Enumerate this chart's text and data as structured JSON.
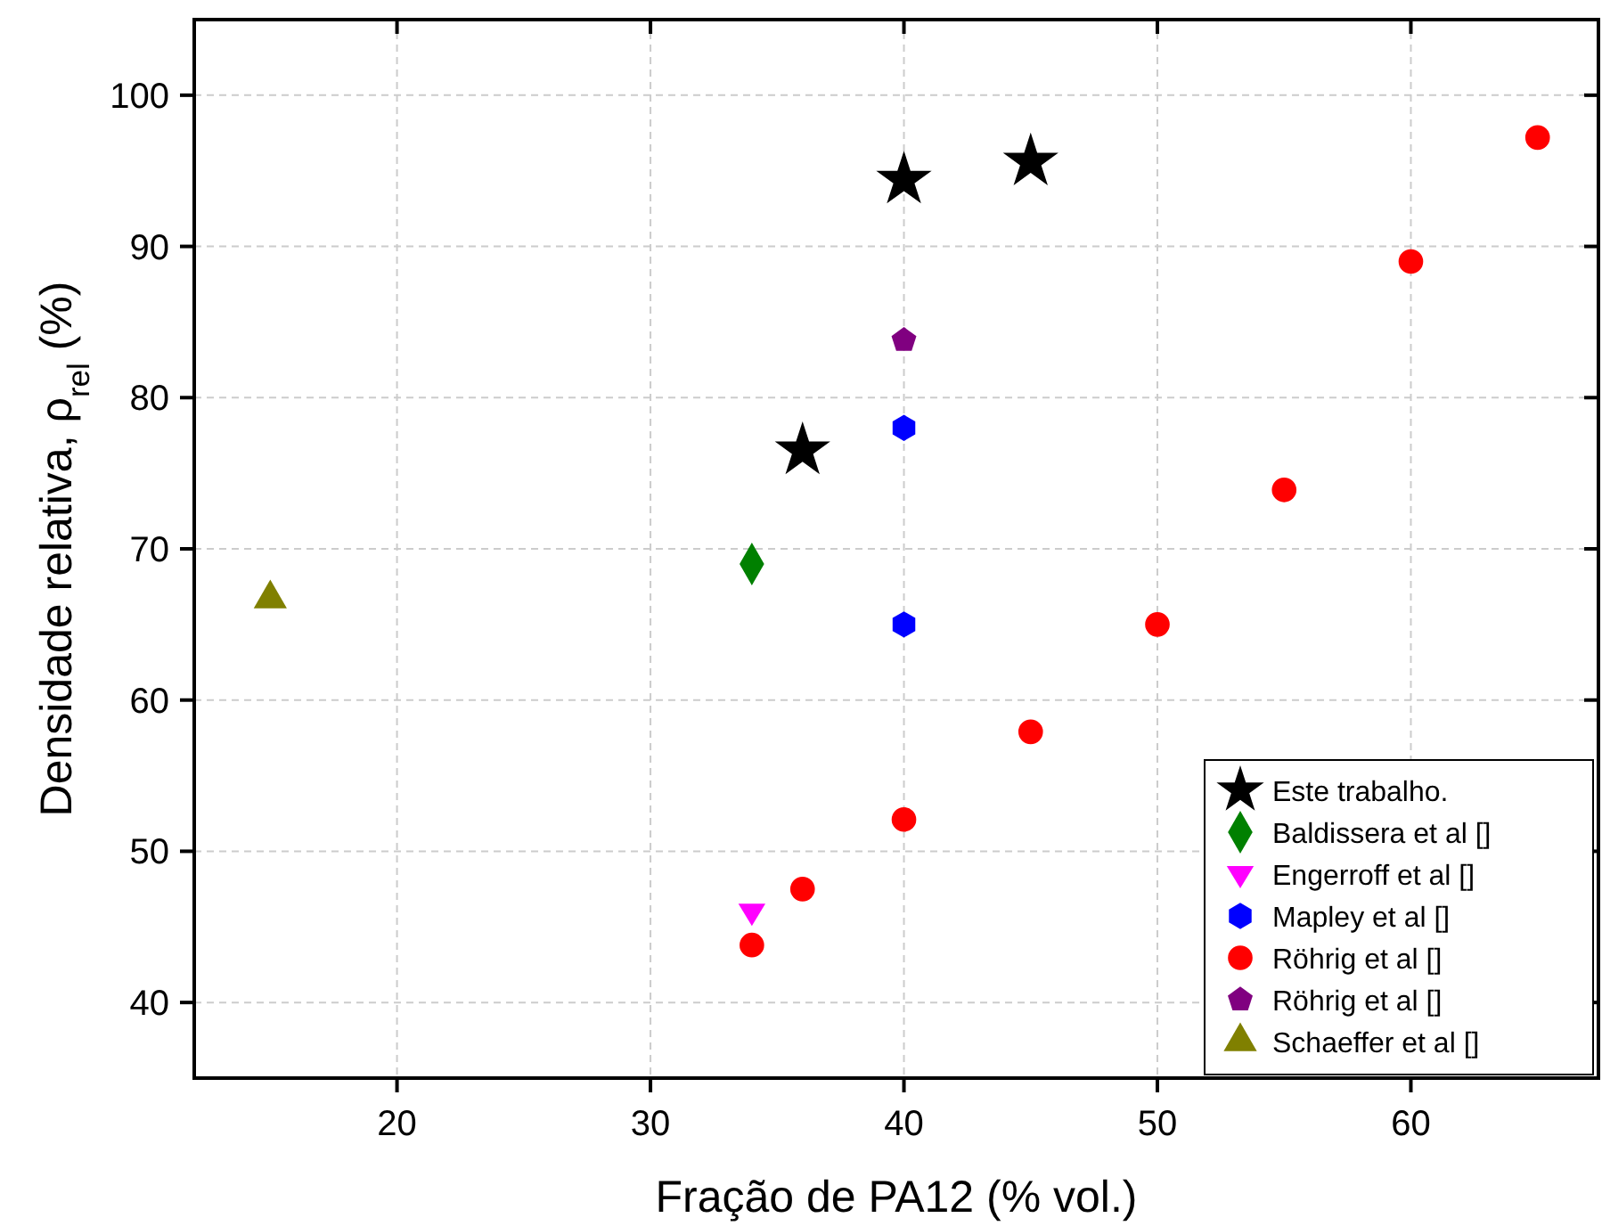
{
  "chart_data": {
    "type": "scatter",
    "xlabel": "Fração de PA12 (% vol.)",
    "ylabel": "Densidade relativa, ρ$_{rel}$ (%)",
    "xlim": [
      12,
      67.4
    ],
    "xticks": [
      20,
      30,
      40,
      50,
      60
    ],
    "ylim": [
      35,
      105
    ],
    "yticks": [
      40,
      50,
      60,
      70,
      80,
      90,
      100
    ],
    "grid": true,
    "legend": "bottom right",
    "series": [
      {
        "name": "Este trabalho.",
        "color": "#000000",
        "marker": "star",
        "x": [
          36,
          40,
          45
        ],
        "values": [
          76.5,
          94.4,
          95.6
        ]
      },
      {
        "name": "Baldissera et al []",
        "color": "#008000",
        "marker": "diamond",
        "x": [
          34
        ],
        "values": [
          69
        ]
      },
      {
        "name": "Engerroff et al []",
        "color": "#ff00ff",
        "marker": "triangle-down",
        "x": [
          34
        ],
        "values": [
          46
        ]
      },
      {
        "name": "Mapley et al []",
        "color": "#0000ff",
        "x": [
          40,
          40
        ],
        "values": [
          78,
          65
        ]
      },
      {
        "name": "Röhrig et al []",
        "color": "#ff0000",
        "marker": "circle",
        "x": [
          34,
          36,
          40,
          45,
          50,
          55,
          60,
          65
        ],
        "values": [
          43.8,
          47.5,
          52.1,
          57.9,
          65,
          73.9,
          89,
          97.2
        ]
      },
      {
        "name": "Röhrig et al []",
        "color": "#800080",
        "x": [
          40
        ],
        "values": [
          83.8
        ]
      },
      {
        "name": "Schaeffer et al []",
        "color": "#808000",
        "marker": "triangle",
        "x": [
          15
        ],
        "values": [
          66.7
        ]
      }
    ]
  }
}
